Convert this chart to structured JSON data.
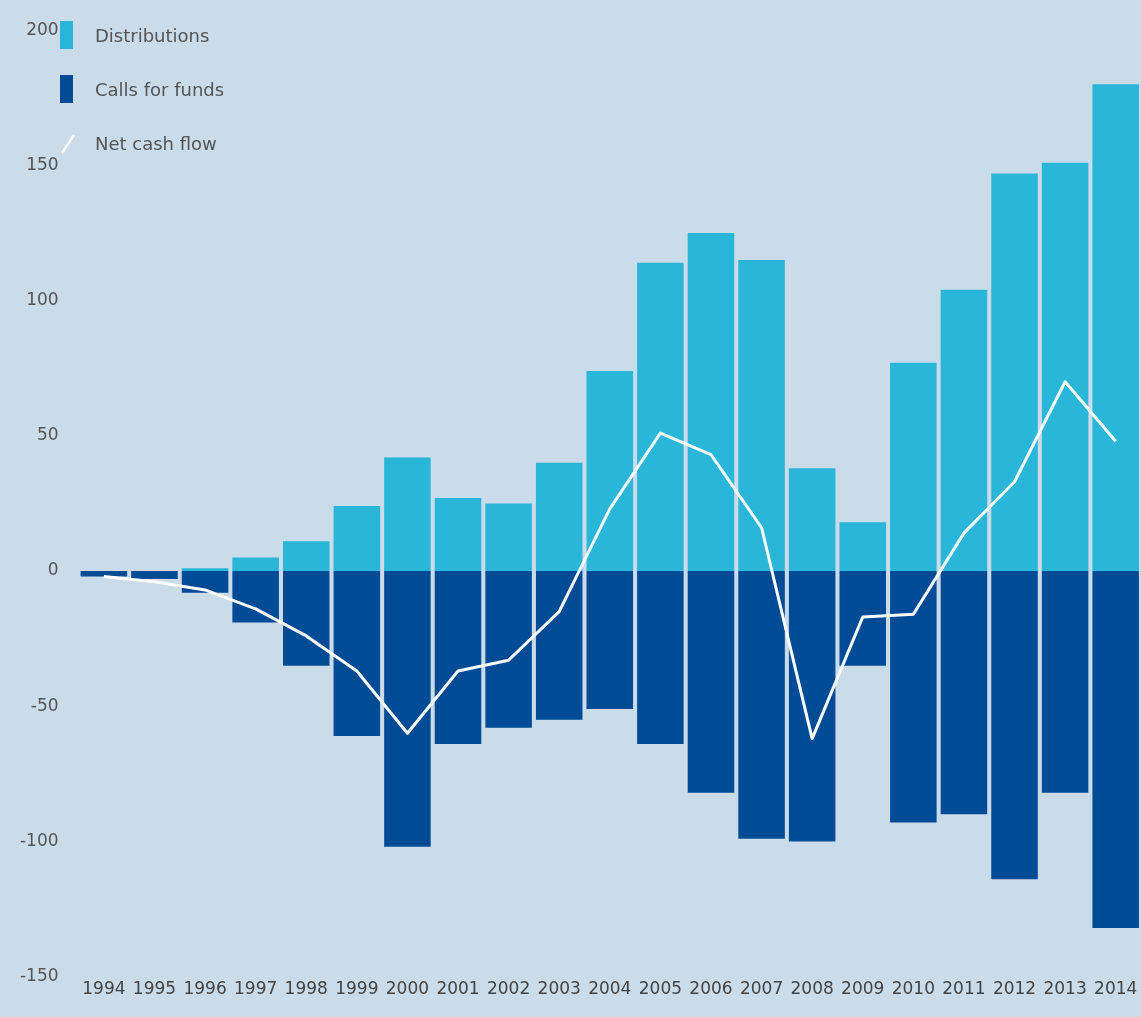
{
  "chart_data": {
    "type": "bar",
    "stacked": true,
    "legend": "top left",
    "grid": false,
    "categories": [
      "1994",
      "1995",
      "1996",
      "1997",
      "1998",
      "1999",
      "2000",
      "2001",
      "2002",
      "2003",
      "2004",
      "2005",
      "2006",
      "2007",
      "2008",
      "2009",
      "2010",
      "2011",
      "2012",
      "2013",
      "2014"
    ],
    "ylim": [
      -150,
      200
    ],
    "yticks": [
      -150,
      -100,
      -50,
      0,
      50,
      100,
      150,
      200
    ],
    "series": [
      {
        "name": "Distributions",
        "color": "#29b6d9",
        "values": [
          null,
          null,
          1,
          5,
          11,
          24,
          42,
          27,
          25,
          40,
          74,
          114,
          125,
          115,
          38,
          18,
          77,
          104,
          147,
          151,
          180
        ]
      },
      {
        "name": "Calls for funds",
        "color": "#004b96",
        "values": [
          -2,
          -3,
          -8,
          -19,
          -35,
          -61,
          -102,
          -64,
          -58,
          -55,
          -51,
          -64,
          -82,
          -99,
          -100,
          -35,
          -93,
          -90,
          -114,
          -82,
          -132
        ]
      },
      {
        "name": "Net cash flow",
        "type": "line",
        "color": "#ffffff",
        "values": [
          -2,
          -4,
          -7,
          -14,
          -24,
          -37,
          -60,
          -37,
          -33,
          -15,
          23,
          51,
          43,
          16,
          -62,
          -17,
          -16,
          14,
          33,
          70,
          48
        ]
      }
    ]
  }
}
